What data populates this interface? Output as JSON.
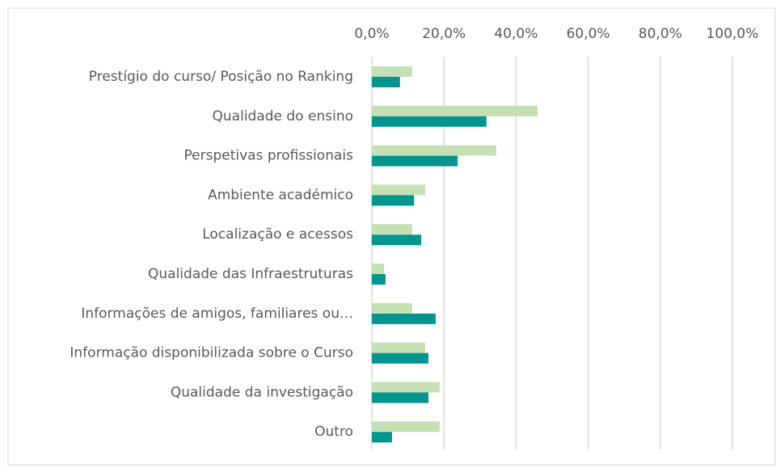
{
  "chart_data": {
    "type": "bar",
    "orientation": "horizontal",
    "categories": [
      "Prestígio do curso/ Posição no Ranking",
      "Qualidade do ensino",
      "Perspetivas profissionais",
      "Ambiente académico",
      "Localização e acessos",
      "Qualidade das Infraestruturas",
      "Informações de amigos, familiares ou…",
      "Informação disponibilizada sobre o Curso",
      "Qualidade da investigação",
      "Outro"
    ],
    "series": [
      {
        "color": "#c5e0b4",
        "values": [
          11.2,
          46.0,
          34.5,
          14.8,
          11.2,
          3.4,
          11.2,
          14.8,
          18.8,
          18.8
        ]
      },
      {
        "color": "#00968f",
        "values": [
          7.8,
          31.8,
          23.8,
          11.7,
          13.7,
          3.8,
          17.7,
          15.7,
          15.7,
          5.6
        ]
      }
    ],
    "xlim": [
      0,
      100
    ],
    "xticks": [
      {
        "value": 0,
        "label": "0,0%"
      },
      {
        "value": 20,
        "label": "20,0%"
      },
      {
        "value": 40,
        "label": "40,0%"
      },
      {
        "value": 60,
        "label": "60,0%"
      },
      {
        "value": 80,
        "label": "80,0%"
      },
      {
        "value": 100,
        "label": "100,0%"
      }
    ],
    "grid": true
  }
}
